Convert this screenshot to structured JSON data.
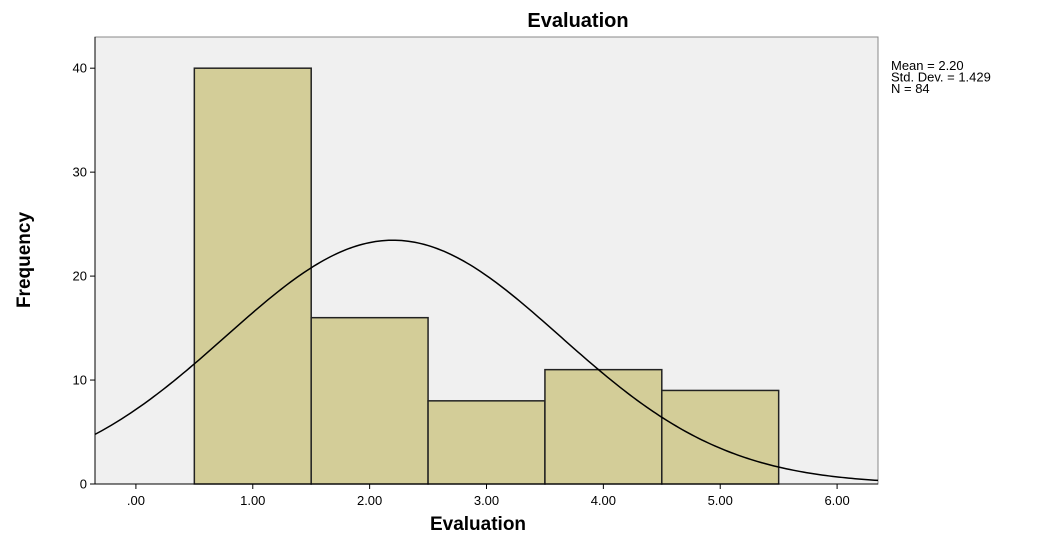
{
  "chart_data": {
    "type": "bar",
    "title": "Evaluation",
    "xlabel": "Evaluation",
    "ylabel": "Frequency",
    "bins": [
      {
        "from": 0.5,
        "to": 1.5,
        "count": 40
      },
      {
        "from": 1.5,
        "to": 2.5,
        "count": 16
      },
      {
        "from": 2.5,
        "to": 3.5,
        "count": 8
      },
      {
        "from": 3.5,
        "to": 4.5,
        "count": 11
      },
      {
        "from": 4.5,
        "to": 5.5,
        "count": 9
      }
    ],
    "xlim": [
      -0.35,
      6.35
    ],
    "ylim": [
      0,
      43
    ],
    "x_ticks": [
      0,
      1,
      2,
      3,
      4,
      5,
      6
    ],
    "x_tick_labels": [
      ".00",
      "1.00",
      "2.00",
      "3.00",
      "4.00",
      "5.00",
      "6.00"
    ],
    "y_ticks": [
      0,
      10,
      20,
      30,
      40
    ],
    "y_tick_labels": [
      "0",
      "10",
      "20",
      "30",
      "40"
    ],
    "normal_curve": {
      "mean": 2.2,
      "sd": 1.429,
      "n": 84,
      "bin_width": 1
    },
    "stats_text": [
      "Mean = 2.20",
      "Std. Dev. = 1.429",
      "N = 84"
    ],
    "grid": false,
    "legend": "none",
    "colors": {
      "bar_fill": "#d3cd98",
      "bar_stroke": "#222222",
      "plot_bg": "#f0f0f0",
      "curve": "#000000"
    }
  }
}
